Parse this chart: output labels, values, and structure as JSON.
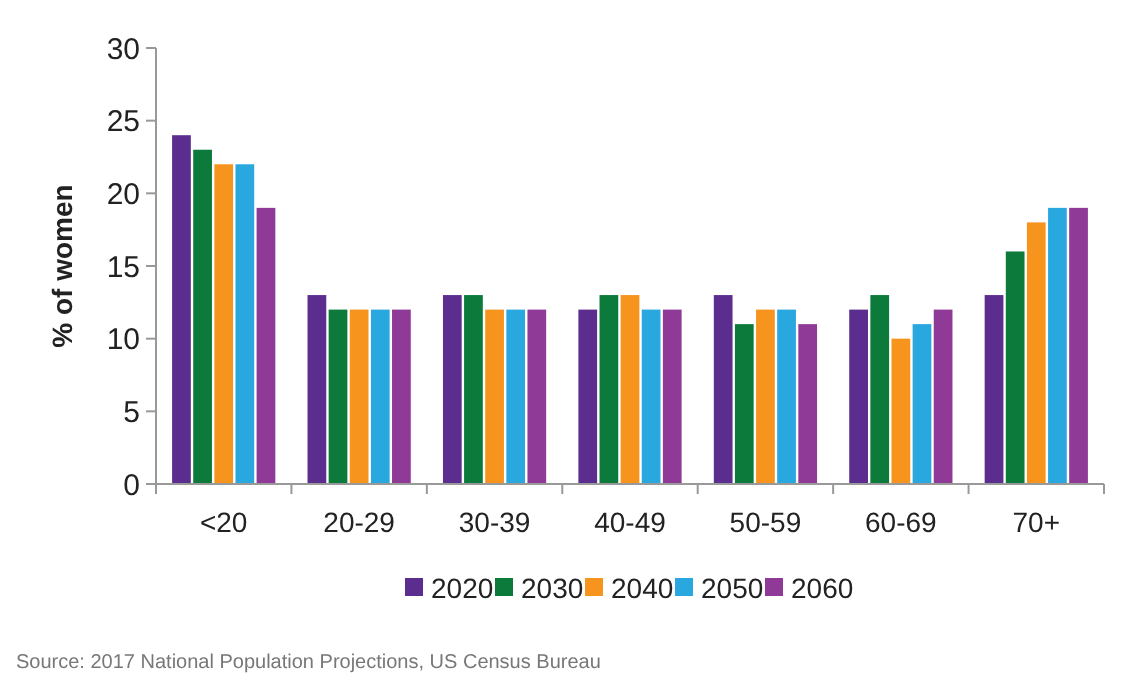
{
  "chart_data": {
    "type": "bar",
    "ylabel": "% of women",
    "categories": [
      "<20",
      "20-29",
      "30-39",
      "40-49",
      "50-59",
      "60-69",
      "70+"
    ],
    "series": [
      {
        "name": "2020",
        "color": "#5b2d8e",
        "values": [
          24,
          13,
          13,
          12,
          13,
          12,
          13
        ]
      },
      {
        "name": "2030",
        "color": "#0b7a3a",
        "values": [
          23,
          12,
          13,
          13,
          11,
          13,
          16
        ]
      },
      {
        "name": "2040",
        "color": "#f7941d",
        "values": [
          22,
          12,
          12,
          13,
          12,
          10,
          18
        ]
      },
      {
        "name": "2050",
        "color": "#29a8e0",
        "values": [
          22,
          12,
          12,
          12,
          12,
          11,
          19
        ]
      },
      {
        "name": "2060",
        "color": "#8e3a96",
        "values": [
          19,
          12,
          12,
          12,
          11,
          12,
          19
        ]
      }
    ],
    "ylim": [
      0,
      30
    ],
    "yticks": [
      0,
      5,
      10,
      15,
      20,
      25,
      30
    ],
    "legend": "bottom",
    "grid": false,
    "annotations": [
      "Source: 2017 National Population Projections, US Census Bureau"
    ]
  }
}
